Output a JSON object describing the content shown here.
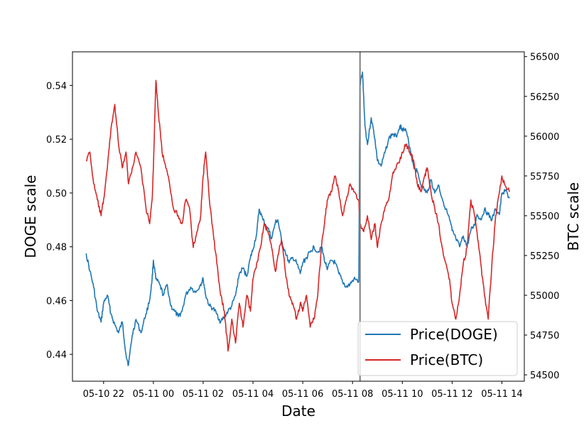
{
  "chart_data": {
    "type": "line",
    "xlabel": "Date",
    "ylabel_left": "DOGE scale",
    "ylabel_right": "BTC scale",
    "x_ticks": [
      "05-10 22",
      "05-11 00",
      "05-11 02",
      "05-11 04",
      "05-11 06",
      "05-11 08",
      "05-11 10",
      "05-11 12",
      "05-11 14"
    ],
    "x_tick_hours": [
      22,
      24,
      26,
      28,
      30,
      32,
      34,
      36,
      38
    ],
    "xlim_hours": [
      20.75,
      38.9
    ],
    "y_left_ticks": [
      "0.44",
      "0.46",
      "0.48",
      "0.50",
      "0.52",
      "0.54"
    ],
    "y_left_lim": [
      0.43,
      0.5525
    ],
    "y_right_ticks": [
      "54500",
      "54750",
      "55000",
      "55250",
      "55500",
      "55750",
      "56000",
      "56250",
      "56500"
    ],
    "y_right_lim": [
      54460,
      56530
    ],
    "vertical_line_hour": 32.3,
    "legend_placement": "lower-right",
    "grid": false,
    "series": [
      {
        "name": "Price(DOGE)",
        "axis": "left",
        "color": "#1f77b4",
        "points": [
          [
            21.3,
            0.4775
          ],
          [
            21.45,
            0.471
          ],
          [
            21.6,
            0.465
          ],
          [
            21.75,
            0.456
          ],
          [
            21.9,
            0.452
          ],
          [
            22.0,
            0.459
          ],
          [
            22.15,
            0.462
          ],
          [
            22.3,
            0.455
          ],
          [
            22.45,
            0.451
          ],
          [
            22.6,
            0.448
          ],
          [
            22.75,
            0.452
          ],
          [
            22.9,
            0.44
          ],
          [
            23.0,
            0.436
          ],
          [
            23.15,
            0.447
          ],
          [
            23.3,
            0.453
          ],
          [
            23.5,
            0.448
          ],
          [
            23.7,
            0.455
          ],
          [
            23.85,
            0.46
          ],
          [
            23.95,
            0.468
          ],
          [
            24.0,
            0.475
          ],
          [
            24.1,
            0.468
          ],
          [
            24.25,
            0.466
          ],
          [
            24.4,
            0.462
          ],
          [
            24.55,
            0.466
          ],
          [
            24.7,
            0.458
          ],
          [
            24.85,
            0.456
          ],
          [
            25.0,
            0.454
          ],
          [
            25.15,
            0.456
          ],
          [
            25.3,
            0.462
          ],
          [
            25.5,
            0.465
          ],
          [
            25.7,
            0.463
          ],
          [
            25.9,
            0.466
          ],
          [
            26.0,
            0.468
          ],
          [
            26.1,
            0.462
          ],
          [
            26.25,
            0.458
          ],
          [
            26.4,
            0.457
          ],
          [
            26.55,
            0.455
          ],
          [
            26.7,
            0.452
          ],
          [
            26.85,
            0.454
          ],
          [
            27.0,
            0.456
          ],
          [
            27.15,
            0.458
          ],
          [
            27.3,
            0.462
          ],
          [
            27.45,
            0.47
          ],
          [
            27.6,
            0.472
          ],
          [
            27.75,
            0.469
          ],
          [
            27.9,
            0.476
          ],
          [
            28.0,
            0.479
          ],
          [
            28.15,
            0.485
          ],
          [
            28.25,
            0.494
          ],
          [
            28.4,
            0.49
          ],
          [
            28.6,
            0.487
          ],
          [
            28.75,
            0.483
          ],
          [
            28.9,
            0.489
          ],
          [
            29.0,
            0.49
          ],
          [
            29.15,
            0.482
          ],
          [
            29.3,
            0.478
          ],
          [
            29.45,
            0.474
          ],
          [
            29.6,
            0.476
          ],
          [
            29.75,
            0.474
          ],
          [
            29.9,
            0.47
          ],
          [
            30.0,
            0.474
          ],
          [
            30.15,
            0.476
          ],
          [
            30.3,
            0.478
          ],
          [
            30.45,
            0.48
          ],
          [
            30.6,
            0.478
          ],
          [
            30.75,
            0.48
          ],
          [
            30.9,
            0.474
          ],
          [
            31.0,
            0.472
          ],
          [
            31.15,
            0.475
          ],
          [
            31.3,
            0.474
          ],
          [
            31.45,
            0.47
          ],
          [
            31.6,
            0.467
          ],
          [
            31.75,
            0.465
          ],
          [
            31.9,
            0.466
          ],
          [
            32.05,
            0.468
          ],
          [
            32.25,
            0.467
          ],
          [
            32.3,
            0.54
          ],
          [
            32.4,
            0.545
          ],
          [
            32.5,
            0.525
          ],
          [
            32.6,
            0.518
          ],
          [
            32.75,
            0.528
          ],
          [
            32.9,
            0.52
          ],
          [
            33.0,
            0.512
          ],
          [
            33.15,
            0.51
          ],
          [
            33.3,
            0.515
          ],
          [
            33.45,
            0.52
          ],
          [
            33.6,
            0.522
          ],
          [
            33.75,
            0.521
          ],
          [
            33.9,
            0.525
          ],
          [
            34.0,
            0.524
          ],
          [
            34.15,
            0.523
          ],
          [
            34.3,
            0.517
          ],
          [
            34.45,
            0.51
          ],
          [
            34.6,
            0.508
          ],
          [
            34.75,
            0.503
          ],
          [
            34.9,
            0.501
          ],
          [
            35.0,
            0.5
          ],
          [
            35.15,
            0.505
          ],
          [
            35.3,
            0.5
          ],
          [
            35.45,
            0.503
          ],
          [
            35.6,
            0.498
          ],
          [
            35.75,
            0.494
          ],
          [
            35.9,
            0.49
          ],
          [
            36.0,
            0.486
          ],
          [
            36.15,
            0.483
          ],
          [
            36.3,
            0.48
          ],
          [
            36.45,
            0.484
          ],
          [
            36.6,
            0.48
          ],
          [
            36.75,
            0.486
          ],
          [
            36.9,
            0.488
          ],
          [
            37.0,
            0.492
          ],
          [
            37.15,
            0.49
          ],
          [
            37.3,
            0.494
          ],
          [
            37.45,
            0.492
          ],
          [
            37.6,
            0.49
          ],
          [
            37.75,
            0.494
          ],
          [
            37.9,
            0.492
          ],
          [
            38.0,
            0.5
          ],
          [
            38.15,
            0.501
          ],
          [
            38.3,
            0.498
          ]
        ]
      },
      {
        "name": "Price(BTC)",
        "axis": "right",
        "color": "#d62728",
        "points": [
          [
            21.3,
            55850
          ],
          [
            21.45,
            55900
          ],
          [
            21.6,
            55700
          ],
          [
            21.75,
            55600
          ],
          [
            21.9,
            55500
          ],
          [
            22.0,
            55600
          ],
          [
            22.15,
            55800
          ],
          [
            22.3,
            56050
          ],
          [
            22.45,
            56200
          ],
          [
            22.6,
            55950
          ],
          [
            22.75,
            55800
          ],
          [
            22.9,
            55900
          ],
          [
            23.0,
            55700
          ],
          [
            23.15,
            55800
          ],
          [
            23.3,
            55900
          ],
          [
            23.5,
            55800
          ],
          [
            23.7,
            55550
          ],
          [
            23.85,
            55450
          ],
          [
            23.95,
            55600
          ],
          [
            24.0,
            55800
          ],
          [
            24.1,
            56350
          ],
          [
            24.2,
            56150
          ],
          [
            24.35,
            55900
          ],
          [
            24.5,
            55800
          ],
          [
            24.65,
            55700
          ],
          [
            24.8,
            55550
          ],
          [
            25.0,
            55500
          ],
          [
            25.15,
            55450
          ],
          [
            25.3,
            55600
          ],
          [
            25.45,
            55550
          ],
          [
            25.6,
            55300
          ],
          [
            25.75,
            55400
          ],
          [
            25.9,
            55500
          ],
          [
            26.0,
            55750
          ],
          [
            26.1,
            55900
          ],
          [
            26.25,
            55600
          ],
          [
            26.4,
            55400
          ],
          [
            26.55,
            55200
          ],
          [
            26.7,
            55000
          ],
          [
            26.85,
            54900
          ],
          [
            27.0,
            54650
          ],
          [
            27.15,
            54850
          ],
          [
            27.3,
            54700
          ],
          [
            27.45,
            54950
          ],
          [
            27.6,
            54800
          ],
          [
            27.75,
            55000
          ],
          [
            27.9,
            54900
          ],
          [
            28.0,
            55100
          ],
          [
            28.15,
            55200
          ],
          [
            28.3,
            55300
          ],
          [
            28.45,
            55450
          ],
          [
            28.6,
            55400
          ],
          [
            28.75,
            55300
          ],
          [
            28.9,
            55150
          ],
          [
            29.0,
            55250
          ],
          [
            29.15,
            55350
          ],
          [
            29.3,
            55150
          ],
          [
            29.45,
            55000
          ],
          [
            29.6,
            54950
          ],
          [
            29.75,
            54850
          ],
          [
            29.9,
            54950
          ],
          [
            30.0,
            54900
          ],
          [
            30.15,
            55000
          ],
          [
            30.3,
            54800
          ],
          [
            30.45,
            54850
          ],
          [
            30.6,
            55000
          ],
          [
            30.75,
            55300
          ],
          [
            30.9,
            55500
          ],
          [
            31.0,
            55600
          ],
          [
            31.15,
            55650
          ],
          [
            31.3,
            55750
          ],
          [
            31.45,
            55650
          ],
          [
            31.6,
            55500
          ],
          [
            31.75,
            55600
          ],
          [
            31.9,
            55700
          ],
          [
            32.05,
            55650
          ],
          [
            32.25,
            55600
          ],
          [
            32.3,
            55450
          ],
          [
            32.45,
            55400
          ],
          [
            32.6,
            55500
          ],
          [
            32.75,
            55350
          ],
          [
            32.9,
            55450
          ],
          [
            33.0,
            55300
          ],
          [
            33.15,
            55450
          ],
          [
            33.3,
            55550
          ],
          [
            33.45,
            55600
          ],
          [
            33.6,
            55750
          ],
          [
            33.75,
            55800
          ],
          [
            33.9,
            55850
          ],
          [
            34.0,
            55900
          ],
          [
            34.15,
            55950
          ],
          [
            34.3,
            55900
          ],
          [
            34.45,
            55850
          ],
          [
            34.6,
            55700
          ],
          [
            34.75,
            55650
          ],
          [
            34.9,
            55750
          ],
          [
            35.0,
            55800
          ],
          [
            35.15,
            55650
          ],
          [
            35.3,
            55550
          ],
          [
            35.45,
            55450
          ],
          [
            35.6,
            55300
          ],
          [
            35.75,
            55200
          ],
          [
            35.9,
            55100
          ],
          [
            36.0,
            54950
          ],
          [
            36.15,
            54850
          ],
          [
            36.3,
            55000
          ],
          [
            36.45,
            55200
          ],
          [
            36.6,
            55300
          ],
          [
            36.75,
            55600
          ],
          [
            36.9,
            55500
          ],
          [
            37.0,
            55400
          ],
          [
            37.15,
            55200
          ],
          [
            37.3,
            55000
          ],
          [
            37.45,
            54850
          ],
          [
            37.6,
            55200
          ],
          [
            37.75,
            55500
          ],
          [
            37.9,
            55650
          ],
          [
            38.0,
            55750
          ],
          [
            38.1,
            55700
          ],
          [
            38.3,
            55650
          ]
        ]
      }
    ]
  }
}
